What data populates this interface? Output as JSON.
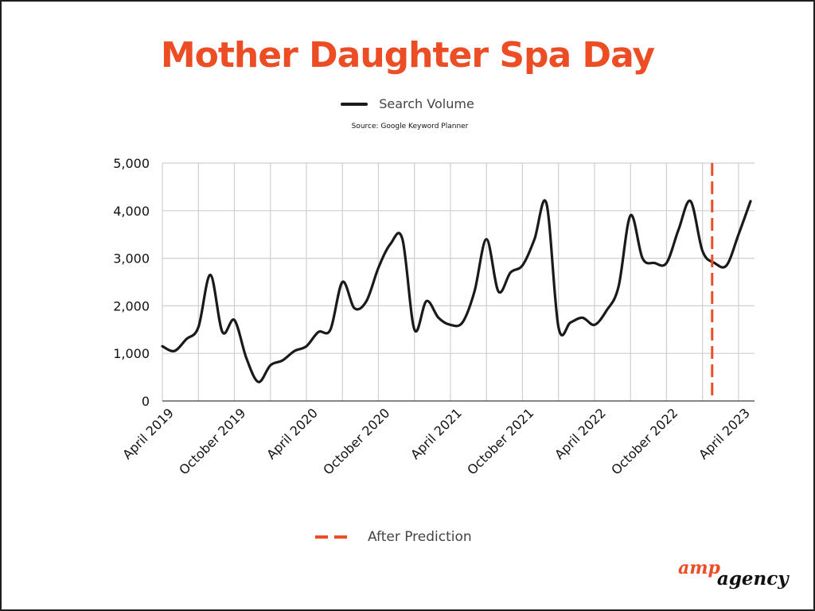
{
  "title": "Mother Daughter Spa Day",
  "legend_line_label": "Search Volume",
  "source": "Source: Google Keyword Planner",
  "prediction_label": "After Prediction",
  "logo": {
    "amp": "amp",
    "agency": "agency"
  },
  "colors": {
    "accent": "#ec4d25",
    "line": "#1a1a1a",
    "grid": "#cfcfcf"
  },
  "chart_data": {
    "type": "line",
    "title": "Mother Daughter Spa Day",
    "xlabel": "",
    "ylabel": "",
    "ylim": [
      0,
      5000
    ],
    "y_ticks": [
      0,
      1000,
      2000,
      3000,
      4000,
      5000
    ],
    "y_tick_labels": [
      "0",
      "1,000",
      "2,000",
      "3,000",
      "4,000",
      "5,000"
    ],
    "x_tick_labels": [
      "April 2019",
      "October 2019",
      "April 2020",
      "October 2020",
      "April 2021",
      "October 2021",
      "April 2022",
      "October 2022",
      "April 2023"
    ],
    "grid": true,
    "series": [
      {
        "name": "Search Volume",
        "x": [
          "2019-03",
          "2019-04",
          "2019-05",
          "2019-06",
          "2019-07",
          "2019-08",
          "2019-09",
          "2019-10",
          "2019-11",
          "2019-12",
          "2020-01",
          "2020-02",
          "2020-03",
          "2020-04",
          "2020-05",
          "2020-06",
          "2020-07",
          "2020-08",
          "2020-09",
          "2020-10",
          "2020-11",
          "2020-12",
          "2021-01",
          "2021-02",
          "2021-03",
          "2021-04",
          "2021-05",
          "2021-06",
          "2021-07",
          "2021-08",
          "2021-09",
          "2021-10",
          "2021-11",
          "2021-12",
          "2022-01",
          "2022-02",
          "2022-03",
          "2022-04",
          "2022-05",
          "2022-06",
          "2022-07",
          "2022-08",
          "2022-09",
          "2022-10",
          "2022-11",
          "2022-12",
          "2023-01",
          "2023-02",
          "2023-03",
          "2023-04"
        ],
        "values": [
          1150,
          1050,
          1300,
          1550,
          2650,
          1450,
          1700,
          900,
          400,
          750,
          850,
          1050,
          1150,
          1450,
          1500,
          2500,
          1950,
          2100,
          2800,
          3300,
          3400,
          1500,
          2100,
          1750,
          1600,
          1650,
          2300,
          3400,
          2300,
          2700,
          2850,
          3400,
          4150,
          1550,
          1650,
          1750,
          1600,
          1900,
          2400,
          3900,
          3000,
          2900,
          2900,
          3600,
          4200,
          3150,
          2900,
          2850,
          3500,
          4200
        ]
      }
    ],
    "annotations": [
      {
        "type": "vertical-dashed-line",
        "label": "After Prediction",
        "x": "2023-01"
      }
    ]
  }
}
